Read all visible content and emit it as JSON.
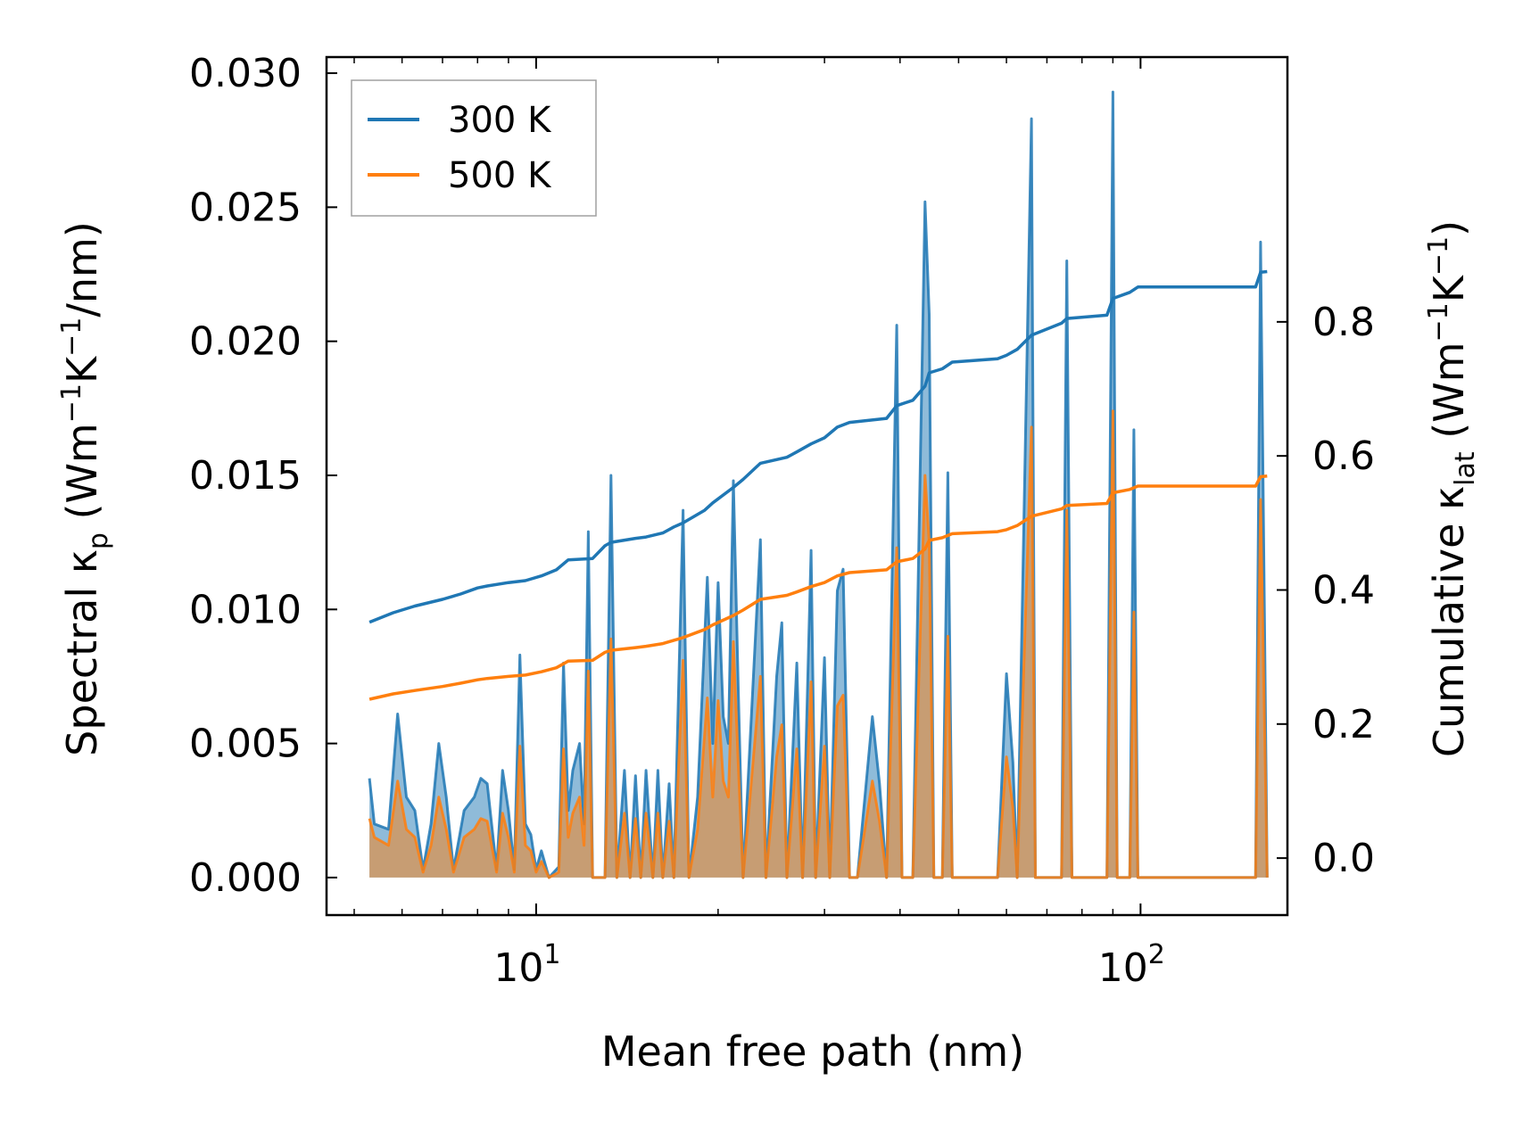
{
  "chart_data": {
    "type": "line",
    "xscale": "log",
    "xlabel": "Mean free path (nm)",
    "ylabel_left": {
      "main": "Spectral κ",
      "sub": "p",
      "units_prefix": " (Wm",
      "sup1": "−1",
      "mid": "K",
      "sup2": "−1",
      "suffix": "/nm)"
    },
    "ylabel_right": {
      "main": "Cumulative κ",
      "sub": "lat",
      "units_prefix": " (Wm",
      "sup1": "−1",
      "mid": "K",
      "sup2": "−1",
      "suffix": ")"
    },
    "xlim": [
      4.5,
      175
    ],
    "ylim_left": [
      -0.0014,
      0.0306
    ],
    "ylim_right": [
      -0.085,
      1.195
    ],
    "left_ticks": [
      "0.000",
      "0.005",
      "0.010",
      "0.015",
      "0.020",
      "0.025",
      "0.030"
    ],
    "right_ticks": [
      "0.0",
      "0.2",
      "0.4",
      "0.6",
      "0.8"
    ],
    "x_ticks": [
      {
        "base": "10",
        "exp": "1"
      },
      {
        "base": "10",
        "exp": "2"
      }
    ],
    "legend": {
      "position": "top-left",
      "entries": [
        "300 K",
        "500 K"
      ]
    },
    "colors": {
      "300K": "#1f77b4",
      "500K": "#ff7f0e",
      "fill300": "#1f77b4",
      "fill500": "#ff7f0e"
    },
    "spectral": {
      "300K": [
        [
          5.3,
          0.0037
        ],
        [
          5.4,
          0.002
        ],
        [
          5.7,
          0.0018
        ],
        [
          5.9,
          0.0061
        ],
        [
          6.1,
          0.003
        ],
        [
          6.3,
          0.0025
        ],
        [
          6.5,
          0.0003
        ],
        [
          6.7,
          0.002
        ],
        [
          6.9,
          0.005
        ],
        [
          7.1,
          0.003
        ],
        [
          7.3,
          0.0003
        ],
        [
          7.6,
          0.0025
        ],
        [
          7.9,
          0.003
        ],
        [
          8.1,
          0.0037
        ],
        [
          8.3,
          0.0035
        ],
        [
          8.6,
          0.0003
        ],
        [
          8.8,
          0.004
        ],
        [
          9.0,
          0.0025
        ],
        [
          9.2,
          0.0003
        ],
        [
          9.4,
          0.0083
        ],
        [
          9.6,
          0.002
        ],
        [
          9.8,
          0.0016
        ],
        [
          10.0,
          0.0003
        ],
        [
          10.2,
          0.001
        ],
        [
          10.5,
          0.0
        ],
        [
          10.9,
          0.0004
        ],
        [
          11.1,
          0.008
        ],
        [
          11.3,
          0.0025
        ],
        [
          11.5,
          0.004
        ],
        [
          11.8,
          0.005
        ],
        [
          12.0,
          0.002
        ],
        [
          12.2,
          0.0129
        ],
        [
          12.4,
          0.0
        ],
        [
          13.0,
          0.0
        ],
        [
          13.3,
          0.015
        ],
        [
          13.6,
          0.0
        ],
        [
          14.0,
          0.004
        ],
        [
          14.3,
          0.0
        ],
        [
          14.6,
          0.0038
        ],
        [
          14.9,
          0.0
        ],
        [
          15.2,
          0.004
        ],
        [
          15.6,
          0.0
        ],
        [
          15.9,
          0.004
        ],
        [
          16.2,
          0.0
        ],
        [
          16.6,
          0.0035
        ],
        [
          16.9,
          0.0
        ],
        [
          17.5,
          0.0137
        ],
        [
          17.9,
          0.0
        ],
        [
          18.5,
          0.003
        ],
        [
          19.2,
          0.0112
        ],
        [
          19.6,
          0.005
        ],
        [
          20.0,
          0.011
        ],
        [
          20.4,
          0.006
        ],
        [
          20.8,
          0.005
        ],
        [
          21.2,
          0.0148
        ],
        [
          21.6,
          0.007
        ],
        [
          22.0,
          0.0
        ],
        [
          23.5,
          0.0126
        ],
        [
          24.0,
          0.0
        ],
        [
          25.0,
          0.0075
        ],
        [
          25.5,
          0.0095
        ],
        [
          26.0,
          0.0
        ],
        [
          27.0,
          0.008
        ],
        [
          27.6,
          0.0
        ],
        [
          28.5,
          0.0122
        ],
        [
          29.0,
          0.0
        ],
        [
          30.0,
          0.0082
        ],
        [
          30.6,
          0.0
        ],
        [
          31.5,
          0.0107
        ],
        [
          32.2,
          0.0115
        ],
        [
          33.0,
          0.0
        ],
        [
          34.0,
          0.0
        ],
        [
          36.0,
          0.006
        ],
        [
          37.0,
          0.0035
        ],
        [
          38.0,
          0.0
        ],
        [
          39.5,
          0.0206
        ],
        [
          40.3,
          0.0
        ],
        [
          42.0,
          0.0
        ],
        [
          44.0,
          0.0252
        ],
        [
          44.7,
          0.021
        ],
        [
          45.5,
          0.0
        ],
        [
          47.0,
          0.0
        ],
        [
          48.0,
          0.0151
        ],
        [
          48.8,
          0.0
        ],
        [
          52.0,
          0.0
        ],
        [
          58.0,
          0.0
        ],
        [
          60.0,
          0.0076
        ],
        [
          61.5,
          0.0043
        ],
        [
          62.5,
          0.0
        ],
        [
          66.0,
          0.0283
        ],
        [
          67.0,
          0.0
        ],
        [
          74.0,
          0.0
        ],
        [
          75.5,
          0.023
        ],
        [
          77.0,
          0.0
        ],
        [
          88.0,
          0.0
        ],
        [
          90.0,
          0.0293
        ],
        [
          91.5,
          0.0
        ],
        [
          96.0,
          0.0
        ],
        [
          97.5,
          0.0167
        ],
        [
          99.0,
          0.0
        ],
        [
          155.0,
          0.0
        ],
        [
          158.0,
          0.0237
        ],
        [
          162.0,
          0.0
        ]
      ],
      "500K": [
        [
          5.3,
          0.0022
        ],
        [
          5.4,
          0.0015
        ],
        [
          5.7,
          0.0012
        ],
        [
          5.9,
          0.0036
        ],
        [
          6.1,
          0.0018
        ],
        [
          6.3,
          0.0015
        ],
        [
          6.5,
          0.0002
        ],
        [
          6.7,
          0.0012
        ],
        [
          6.9,
          0.003
        ],
        [
          7.1,
          0.0018
        ],
        [
          7.3,
          0.0002
        ],
        [
          7.6,
          0.0015
        ],
        [
          7.9,
          0.0018
        ],
        [
          8.1,
          0.0022
        ],
        [
          8.3,
          0.0021
        ],
        [
          8.6,
          0.0002
        ],
        [
          8.8,
          0.0024
        ],
        [
          9.0,
          0.0015
        ],
        [
          9.2,
          0.0002
        ],
        [
          9.4,
          0.0049
        ],
        [
          9.6,
          0.0012
        ],
        [
          9.8,
          0.001
        ],
        [
          10.0,
          0.0002
        ],
        [
          10.2,
          0.0006
        ],
        [
          10.5,
          0.0
        ],
        [
          10.9,
          0.0002
        ],
        [
          11.1,
          0.0048
        ],
        [
          11.3,
          0.0015
        ],
        [
          11.5,
          0.0024
        ],
        [
          11.8,
          0.003
        ],
        [
          12.0,
          0.0012
        ],
        [
          12.2,
          0.0077
        ],
        [
          12.4,
          0.0
        ],
        [
          13.0,
          0.0
        ],
        [
          13.3,
          0.0089
        ],
        [
          13.6,
          0.0
        ],
        [
          14.0,
          0.0024
        ],
        [
          14.3,
          0.0
        ],
        [
          14.6,
          0.0022
        ],
        [
          14.9,
          0.0
        ],
        [
          15.2,
          0.0024
        ],
        [
          15.6,
          0.0
        ],
        [
          15.9,
          0.0024
        ],
        [
          16.2,
          0.0
        ],
        [
          16.6,
          0.0021
        ],
        [
          16.9,
          0.0
        ],
        [
          17.5,
          0.0081
        ],
        [
          17.9,
          0.0
        ],
        [
          18.5,
          0.0018
        ],
        [
          19.2,
          0.0067
        ],
        [
          19.6,
          0.003
        ],
        [
          20.0,
          0.0066
        ],
        [
          20.4,
          0.0036
        ],
        [
          20.8,
          0.003
        ],
        [
          21.2,
          0.0088
        ],
        [
          21.6,
          0.0042
        ],
        [
          22.0,
          0.0
        ],
        [
          23.5,
          0.0075
        ],
        [
          24.0,
          0.0
        ],
        [
          25.0,
          0.0045
        ],
        [
          25.5,
          0.0057
        ],
        [
          26.0,
          0.0
        ],
        [
          27.0,
          0.0048
        ],
        [
          27.6,
          0.0
        ],
        [
          28.5,
          0.0073
        ],
        [
          29.0,
          0.0
        ],
        [
          30.0,
          0.0049
        ],
        [
          30.6,
          0.0
        ],
        [
          31.5,
          0.0064
        ],
        [
          32.2,
          0.0068
        ],
        [
          33.0,
          0.0
        ],
        [
          34.0,
          0.0
        ],
        [
          36.0,
          0.0036
        ],
        [
          37.0,
          0.0021
        ],
        [
          38.0,
          0.0
        ],
        [
          39.5,
          0.0123
        ],
        [
          40.3,
          0.0
        ],
        [
          42.0,
          0.0
        ],
        [
          44.0,
          0.015
        ],
        [
          44.7,
          0.0125
        ],
        [
          45.5,
          0.0
        ],
        [
          47.0,
          0.0
        ],
        [
          48.0,
          0.009
        ],
        [
          48.8,
          0.0
        ],
        [
          52.0,
          0.0
        ],
        [
          58.0,
          0.0
        ],
        [
          60.0,
          0.0045
        ],
        [
          61.5,
          0.0026
        ],
        [
          62.5,
          0.0
        ],
        [
          66.0,
          0.0168
        ],
        [
          67.0,
          0.0
        ],
        [
          74.0,
          0.0
        ],
        [
          75.5,
          0.0137
        ],
        [
          77.0,
          0.0
        ],
        [
          88.0,
          0.0
        ],
        [
          90.0,
          0.0174
        ],
        [
          91.5,
          0.0
        ],
        [
          96.0,
          0.0
        ],
        [
          97.5,
          0.0099
        ],
        [
          99.0,
          0.0
        ],
        [
          155.0,
          0.0
        ],
        [
          158.0,
          0.0141
        ],
        [
          162.0,
          0.0
        ]
      ]
    },
    "cumulative": {
      "300K": [
        [
          5.3,
          0.352
        ],
        [
          5.8,
          0.366
        ],
        [
          6.3,
          0.376
        ],
        [
          7.0,
          0.386
        ],
        [
          7.5,
          0.394
        ],
        [
          8.0,
          0.403
        ],
        [
          8.3,
          0.406
        ],
        [
          9.0,
          0.411
        ],
        [
          9.6,
          0.414
        ],
        [
          10.2,
          0.421
        ],
        [
          10.8,
          0.43
        ],
        [
          11.3,
          0.445
        ],
        [
          12.4,
          0.447
        ],
        [
          13.0,
          0.466
        ],
        [
          13.3,
          0.471
        ],
        [
          14.6,
          0.477
        ],
        [
          15.2,
          0.479
        ],
        [
          16.2,
          0.485
        ],
        [
          16.9,
          0.494
        ],
        [
          17.5,
          0.5
        ],
        [
          19.0,
          0.519
        ],
        [
          19.6,
          0.53
        ],
        [
          21.2,
          0.553
        ],
        [
          22.0,
          0.565
        ],
        [
          23.5,
          0.589
        ],
        [
          26.0,
          0.598
        ],
        [
          27.0,
          0.606
        ],
        [
          28.5,
          0.618
        ],
        [
          30.0,
          0.627
        ],
        [
          31.5,
          0.643
        ],
        [
          33.0,
          0.65
        ],
        [
          38.0,
          0.656
        ],
        [
          39.5,
          0.675
        ],
        [
          42.0,
          0.683
        ],
        [
          44.0,
          0.704
        ],
        [
          44.7,
          0.724
        ],
        [
          47.0,
          0.73
        ],
        [
          48.8,
          0.74
        ],
        [
          58.0,
          0.745
        ],
        [
          60.0,
          0.75
        ],
        [
          62.5,
          0.759
        ],
        [
          66.0,
          0.78
        ],
        [
          74.0,
          0.798
        ],
        [
          75.5,
          0.805
        ],
        [
          88.0,
          0.81
        ],
        [
          90.0,
          0.835
        ],
        [
          96.0,
          0.844
        ],
        [
          99.0,
          0.852
        ],
        [
          155.0,
          0.852
        ],
        [
          158.0,
          0.874
        ],
        [
          162.0,
          0.875
        ]
      ],
      "500K": [
        [
          5.3,
          0.237
        ],
        [
          5.8,
          0.245
        ],
        [
          6.3,
          0.25
        ],
        [
          7.0,
          0.256
        ],
        [
          7.5,
          0.261
        ],
        [
          8.0,
          0.266
        ],
        [
          8.3,
          0.268
        ],
        [
          9.0,
          0.271
        ],
        [
          9.6,
          0.273
        ],
        [
          10.2,
          0.278
        ],
        [
          10.8,
          0.284
        ],
        [
          11.3,
          0.294
        ],
        [
          12.4,
          0.295
        ],
        [
          13.0,
          0.307
        ],
        [
          13.3,
          0.31
        ],
        [
          14.6,
          0.314
        ],
        [
          15.2,
          0.316
        ],
        [
          16.2,
          0.32
        ],
        [
          16.9,
          0.325
        ],
        [
          17.5,
          0.329
        ],
        [
          19.0,
          0.341
        ],
        [
          19.6,
          0.348
        ],
        [
          21.2,
          0.362
        ],
        [
          22.0,
          0.37
        ],
        [
          23.5,
          0.386
        ],
        [
          26.0,
          0.392
        ],
        [
          27.0,
          0.397
        ],
        [
          28.5,
          0.405
        ],
        [
          30.0,
          0.411
        ],
        [
          31.5,
          0.421
        ],
        [
          33.0,
          0.426
        ],
        [
          38.0,
          0.43
        ],
        [
          39.5,
          0.442
        ],
        [
          42.0,
          0.447
        ],
        [
          44.0,
          0.461
        ],
        [
          44.7,
          0.474
        ],
        [
          47.0,
          0.478
        ],
        [
          48.8,
          0.484
        ],
        [
          58.0,
          0.487
        ],
        [
          60.0,
          0.49
        ],
        [
          62.5,
          0.496
        ],
        [
          66.0,
          0.51
        ],
        [
          74.0,
          0.521
        ],
        [
          75.5,
          0.526
        ],
        [
          88.0,
          0.529
        ],
        [
          90.0,
          0.545
        ],
        [
          96.0,
          0.55
        ],
        [
          99.0,
          0.555
        ],
        [
          155.0,
          0.555
        ],
        [
          158.0,
          0.569
        ],
        [
          162.0,
          0.57
        ]
      ]
    }
  }
}
